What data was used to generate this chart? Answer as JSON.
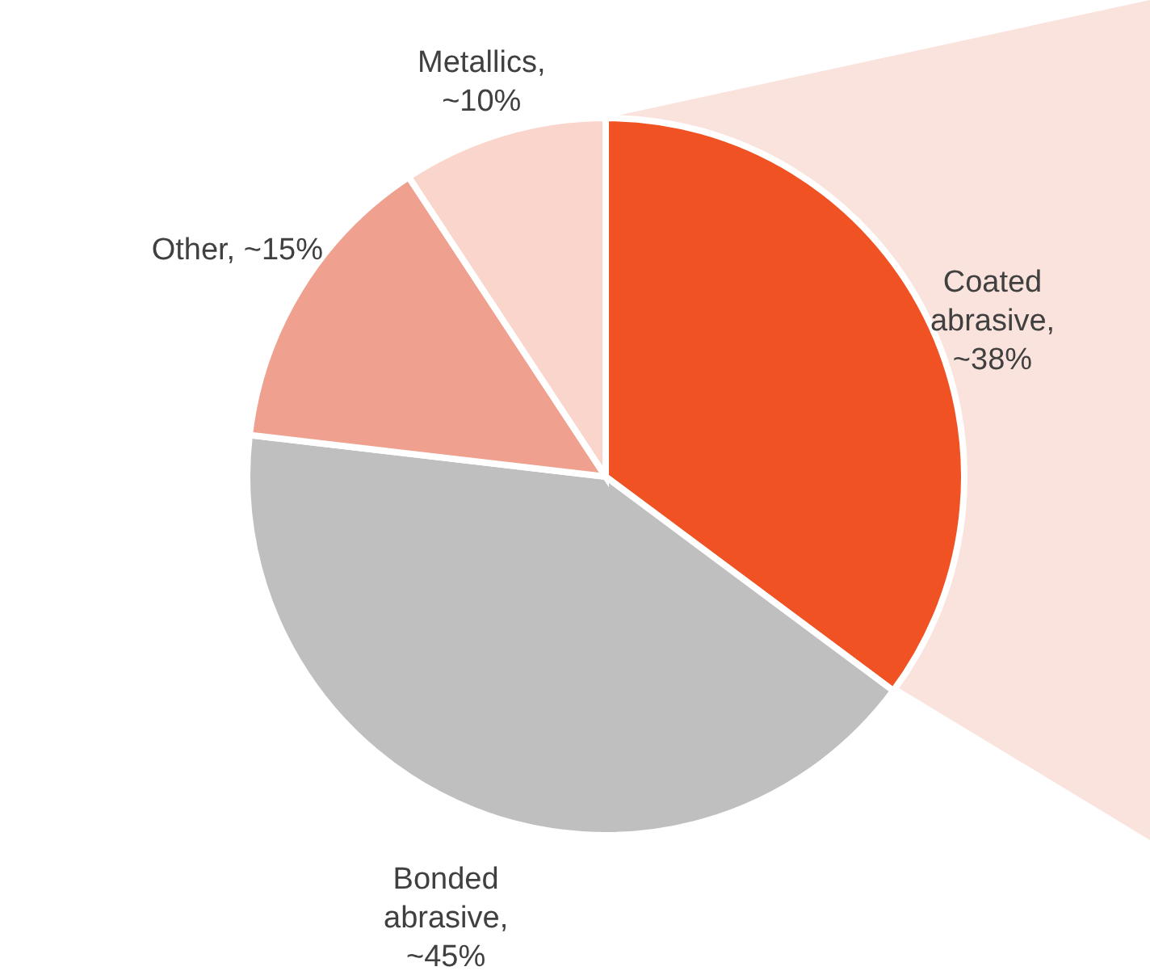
{
  "chart_data": {
    "type": "pie",
    "categories": [
      "Coated abrasive, ~38%",
      "Bonded abrasive, ~45%",
      "Other, ~15%",
      "Metallics, ~10%"
    ],
    "values": [
      38,
      45,
      15,
      10
    ],
    "colors": [
      "#f05223",
      "#bfbfbf",
      "#f0a08e",
      "#fad5cc"
    ]
  }
}
